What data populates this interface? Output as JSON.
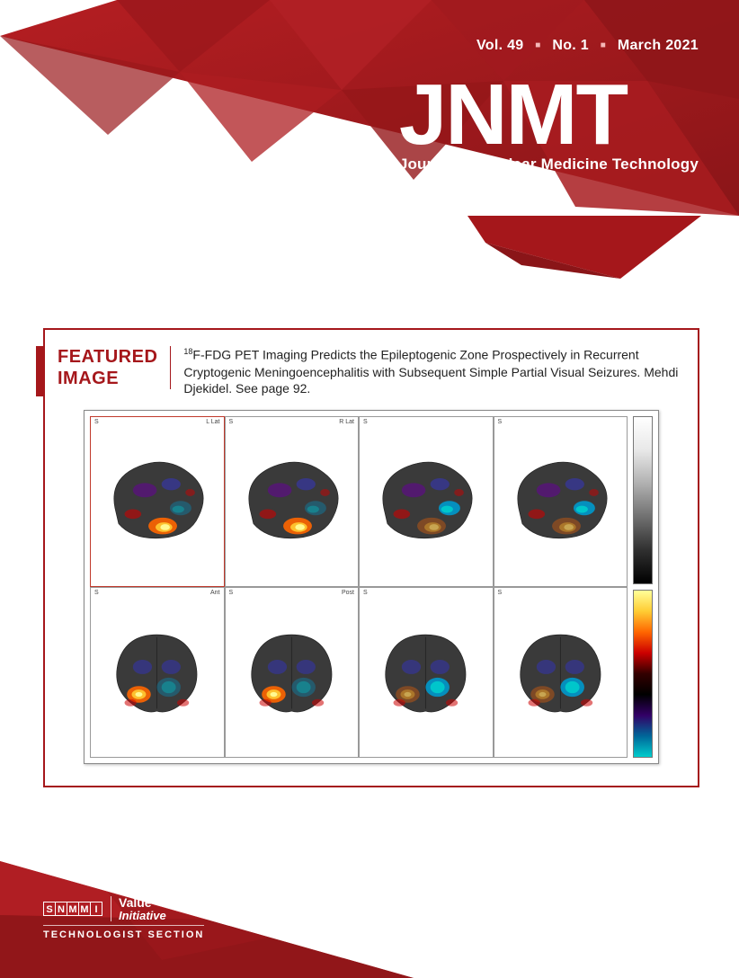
{
  "colors": {
    "brand_red": "#a5171b",
    "brand_red_dark": "#7d1114",
    "brand_red_light": "#c62127",
    "white": "#ffffff",
    "text": "#222222",
    "panel_border": "#999999",
    "panel_red_border": "#c0392b"
  },
  "issue": {
    "volume": "Vol. 49",
    "number": "No. 1",
    "date": "March 2021"
  },
  "masthead": {
    "acronym": "JNMT",
    "title": "Journal of Nuclear Medicine Technology"
  },
  "featured": {
    "label_line1": "FEATURED",
    "label_line2": "IMAGE",
    "superscript": "18",
    "description_main": "F-FDG PET Imaging Predicts the Epileptogenic Zone Prospectively in Recurrent Cryptogenic Meningoencephalitis with Subsequent Simple Partial Visual Seizures. Mehdi Djekidel. See page 92.",
    "figure": {
      "type": "medical-scan-grid",
      "rows": 2,
      "cols": 4,
      "views": [
        {
          "view": "lateral-left",
          "tl": "S",
          "tr": "L Lat",
          "red": true
        },
        {
          "view": "lateral-right",
          "tl": "S",
          "tr": "R Lat",
          "red": false
        },
        {
          "view": "lateral-left",
          "tl": "S",
          "tr": "",
          "red": false
        },
        {
          "view": "lateral-right",
          "tl": "S",
          "tr": "",
          "red": false
        },
        {
          "view": "posterior",
          "tl": "S",
          "tr": "Ant",
          "red": false
        },
        {
          "view": "posterior",
          "tl": "S",
          "tr": "Post",
          "red": false
        },
        {
          "view": "posterior",
          "tl": "S",
          "tr": "",
          "red": false
        },
        {
          "view": "posterior",
          "tl": "S",
          "tr": "",
          "red": false
        }
      ],
      "hot_colors": [
        "#ffff9c",
        "#ffcc33",
        "#ff6600",
        "#cc0000",
        "#660033"
      ],
      "cold_colors": [
        "#00cccc",
        "#0099cc",
        "#3333cc",
        "#660099"
      ],
      "brain_base": "#3a3a3a",
      "colorbars": [
        {
          "stops": [
            "#ffffff",
            "#e8e8e8",
            "#b0b0b0",
            "#707070",
            "#303030",
            "#000000"
          ]
        },
        {
          "stops": [
            "#ffff99",
            "#ffcc33",
            "#ff6600",
            "#cc0000",
            "#330000",
            "#000000",
            "#330066",
            "#006699",
            "#00cccc"
          ]
        }
      ]
    }
  },
  "footer": {
    "org_letters": [
      "S",
      "N",
      "M",
      "M",
      "I"
    ],
    "value": "Value",
    "initiative": "Initiative",
    "section": "TECHNOLOGIST SECTION"
  }
}
